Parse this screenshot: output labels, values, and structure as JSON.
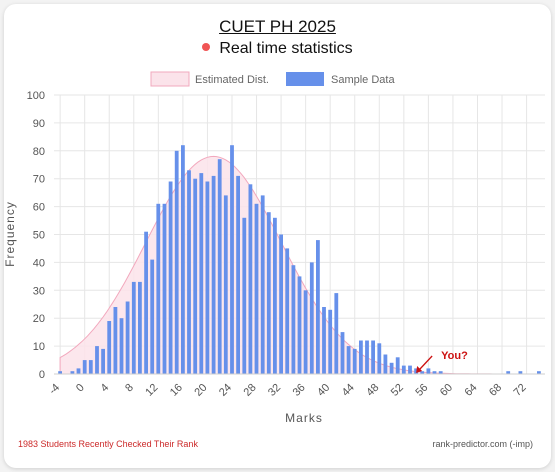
{
  "header": {
    "title": "CUET PH 2025",
    "subtitle": "Real time statistics"
  },
  "footer": {
    "left_text": "1983 Students Recently Checked Their Rank",
    "right_text": "rank-predictor.com (-imp)"
  },
  "colors": {
    "bar": "#6690ea",
    "curve_fill": "#fbe3ea",
    "curve_stroke": "#f2a8bd",
    "grid": "#e6e6e6",
    "live_dot": "#f05454",
    "annotation": "#cc1111"
  },
  "chart_data": {
    "type": "bar",
    "title": "",
    "xlabel": "Marks",
    "ylabel": "Frequency",
    "xlim": [
      -4,
      74
    ],
    "ylim": [
      0,
      100
    ],
    "x_ticks": [
      -4,
      0,
      4,
      8,
      12,
      16,
      20,
      24,
      28,
      32,
      36,
      40,
      44,
      48,
      52,
      56,
      60,
      64,
      68,
      72
    ],
    "y_ticks": [
      0,
      10,
      20,
      30,
      40,
      50,
      60,
      70,
      80,
      90,
      100
    ],
    "grid": true,
    "legend_position": "top",
    "legend": [
      {
        "label": "Estimated Dist.",
        "kind": "area"
      },
      {
        "label": "Sample Data",
        "kind": "bar"
      }
    ],
    "annotation": {
      "text": "You?",
      "x": 54
    },
    "series": [
      {
        "name": "Sample Data",
        "type": "bar",
        "x": [
          -4,
          -3,
          -2,
          -1,
          0,
          1,
          2,
          3,
          4,
          5,
          6,
          7,
          8,
          9,
          10,
          11,
          12,
          13,
          14,
          15,
          16,
          17,
          18,
          19,
          20,
          21,
          22,
          23,
          24,
          25,
          26,
          27,
          28,
          29,
          30,
          31,
          32,
          33,
          34,
          35,
          36,
          37,
          38,
          39,
          40,
          41,
          42,
          43,
          44,
          45,
          46,
          47,
          48,
          49,
          50,
          51,
          52,
          53,
          54,
          55,
          56,
          57,
          58,
          59,
          60,
          61,
          62,
          63,
          64,
          65,
          66,
          67,
          68,
          69,
          70,
          71,
          72,
          73,
          74
        ],
        "values": [
          1,
          0,
          1,
          2,
          5,
          5,
          10,
          9,
          19,
          24,
          20,
          26,
          33,
          33,
          51,
          41,
          61,
          61,
          69,
          80,
          82,
          73,
          70,
          72,
          69,
          71,
          77,
          64,
          82,
          71,
          56,
          68,
          61,
          64,
          58,
          56,
          50,
          45,
          39,
          35,
          30,
          40,
          48,
          24,
          23,
          29,
          15,
          10,
          9,
          12,
          12,
          12,
          11,
          7,
          4,
          6,
          3,
          3,
          2,
          1,
          2,
          1,
          1,
          0,
          0,
          0,
          0,
          0,
          0,
          0,
          0,
          0,
          0,
          1,
          0,
          1,
          0,
          0,
          1
        ]
      },
      {
        "name": "Estimated Dist.",
        "type": "area",
        "mean": 21,
        "sd": 11,
        "peak": 78
      }
    ]
  }
}
